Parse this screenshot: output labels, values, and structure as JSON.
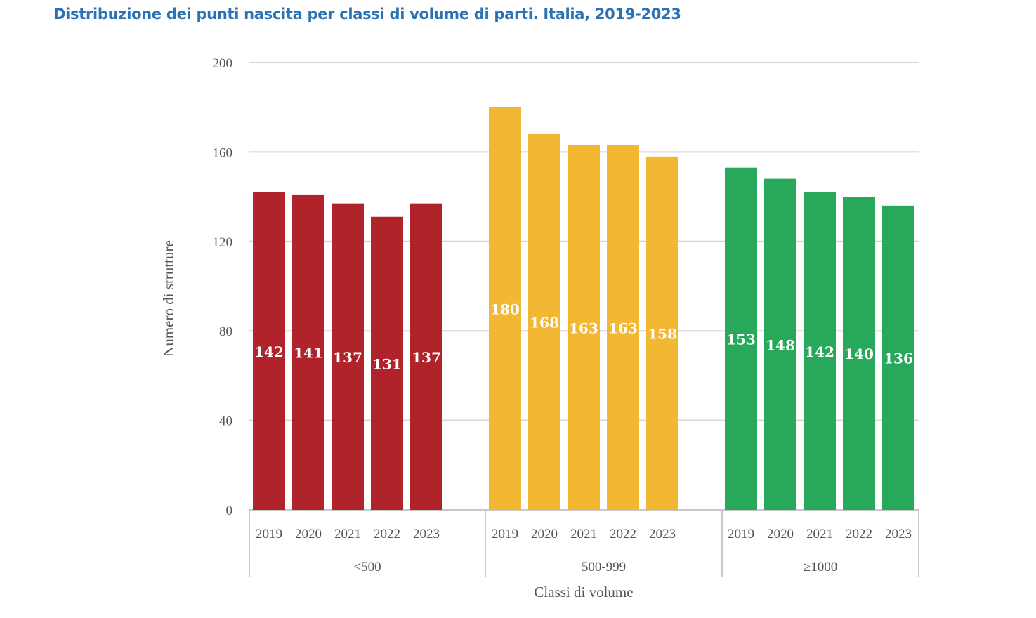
{
  "chart_data": {
    "type": "bar",
    "title": "Distribuzione dei punti nascita per classi di volume di parti. Italia, 2019-2023",
    "xlabel": "Classi di volume",
    "ylabel": "Numero di strutture",
    "ylim": [
      0,
      200
    ],
    "yticks": [
      0,
      40,
      80,
      120,
      160,
      200
    ],
    "grid": true,
    "categories": [
      "2019",
      "2020",
      "2021",
      "2022",
      "2023"
    ],
    "groups": [
      {
        "name": "<500",
        "color": "#b0232a",
        "values": [
          142,
          141,
          137,
          131,
          137
        ]
      },
      {
        "name": "500-999",
        "color": "#f2b733",
        "values": [
          180,
          168,
          163,
          163,
          158
        ]
      },
      {
        "name": "≥1000",
        "color": "#27a85a",
        "values": [
          153,
          148,
          142,
          140,
          136
        ]
      }
    ]
  }
}
